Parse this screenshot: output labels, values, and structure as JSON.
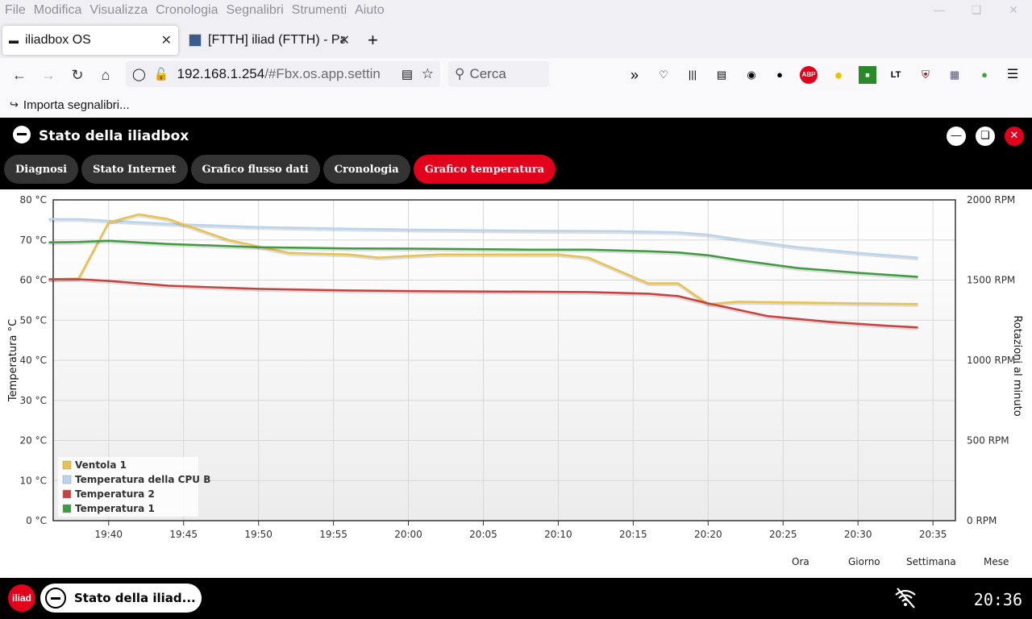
{
  "menu": [
    "File",
    "Modifica",
    "Visualizza",
    "Cronologia",
    "Segnalibri",
    "Strumenti",
    "Aiuto"
  ],
  "tabs": [
    {
      "title": "iliadbox OS"
    },
    {
      "title": "[FTTH] iliad (FTTH) - Pag"
    }
  ],
  "url": {
    "host": "192.168.1.254",
    "path": "/#Fbx.os.app.settin"
  },
  "search": {
    "placeholder": "Cerca"
  },
  "bookmarks": {
    "import_label": "Importa segnalibri..."
  },
  "app": {
    "title": "Stato della iliadbox",
    "tabs": [
      "Diagnosi",
      "Stato Internet",
      "Grafico flusso dati",
      "Cronologia",
      "Grafico temperatura"
    ],
    "active_tab": "Grafico temperatura"
  },
  "range_buttons": [
    "Ora",
    "Giorno",
    "Settimana",
    "Mese"
  ],
  "taskbar": {
    "logo_text": "iliad",
    "item_label": "Stato della iliad...",
    "clock": "20:36"
  },
  "colors": {
    "accent": "#e2001a",
    "ventola": "#e8c24a",
    "cpu": "#b8d4ee",
    "temp2": "#c84040",
    "temp1": "#3f9a3f"
  },
  "chart_data": {
    "type": "line",
    "ylabel": "Temperatura °C",
    "y2label": "Rotazioni al minuto",
    "ylim": [
      0,
      80
    ],
    "y2lim": [
      0,
      2000
    ],
    "yticks": [
      "0 °C",
      "10 °C",
      "20 °C",
      "30 °C",
      "40 °C",
      "50 °C",
      "60 °C",
      "70 °C",
      "80 °C"
    ],
    "y2ticks": [
      "0 RPM",
      "500 RPM",
      "1000 RPM",
      "1500 RPM",
      "2000 RPM"
    ],
    "xticks": [
      "19:40",
      "19:45",
      "19:50",
      "19:55",
      "20:00",
      "20:05",
      "20:10",
      "20:15",
      "20:20",
      "20:25",
      "20:30",
      "20:35"
    ],
    "xlim_minutes": [
      36.3,
      96.5
    ],
    "legend_placement": "bottom-left",
    "series": [
      {
        "name": "Ventola 1",
        "color": "#e8c24a",
        "axis": "rpm",
        "x": [
          "19:36",
          "19:38",
          "19:40",
          "19:42",
          "19:44",
          "19:48",
          "19:52",
          "19:56",
          "19:58",
          "20:02",
          "20:06",
          "20:10",
          "20:12",
          "20:16",
          "20:18",
          "20:20",
          "20:22",
          "20:26",
          "20:30",
          "20:34"
        ],
        "values": [
          1505,
          1510,
          1860,
          1910,
          1880,
          1750,
          1670,
          1660,
          1640,
          1660,
          1660,
          1660,
          1640,
          1480,
          1480,
          1350,
          1365,
          1360,
          1355,
          1350
        ]
      },
      {
        "name": "Temperatura della CPU B",
        "color": "#b8d4ee",
        "axis": "temp",
        "x": [
          "19:36",
          "19:38",
          "19:44",
          "19:50",
          "19:56",
          "20:02",
          "20:08",
          "20:14",
          "20:18",
          "20:20",
          "20:22",
          "20:26",
          "20:30",
          "20:34"
        ],
        "values": [
          75.2,
          75.2,
          74.0,
          73.2,
          72.8,
          72.5,
          72.3,
          72.2,
          71.9,
          71.3,
          70.2,
          68.2,
          66.8,
          65.6
        ]
      },
      {
        "name": "Temperatura 2",
        "color": "#c84040",
        "axis": "temp",
        "x": [
          "19:36",
          "19:38",
          "19:40",
          "19:44",
          "19:50",
          "19:56",
          "20:02",
          "20:08",
          "20:12",
          "20:16",
          "20:18",
          "20:20",
          "20:22",
          "20:24",
          "20:28",
          "20:32",
          "20:34"
        ],
        "values": [
          60.2,
          60.2,
          59.8,
          58.6,
          57.8,
          57.4,
          57.2,
          57.1,
          57.0,
          56.6,
          56.0,
          54.2,
          52.6,
          51.0,
          49.6,
          48.6,
          48.2
        ]
      },
      {
        "name": "Temperatura 1",
        "color": "#3f9a3f",
        "axis": "temp",
        "x": [
          "19:36",
          "19:38",
          "19:40",
          "19:44",
          "19:50",
          "19:56",
          "20:02",
          "20:08",
          "20:12",
          "20:16",
          "20:18",
          "20:20",
          "20:22",
          "20:26",
          "20:30",
          "20:34"
        ],
        "values": [
          69.4,
          69.5,
          69.8,
          69.0,
          68.2,
          67.9,
          67.8,
          67.6,
          67.6,
          67.2,
          66.9,
          66.2,
          65.0,
          63.0,
          61.8,
          60.8
        ]
      }
    ]
  }
}
